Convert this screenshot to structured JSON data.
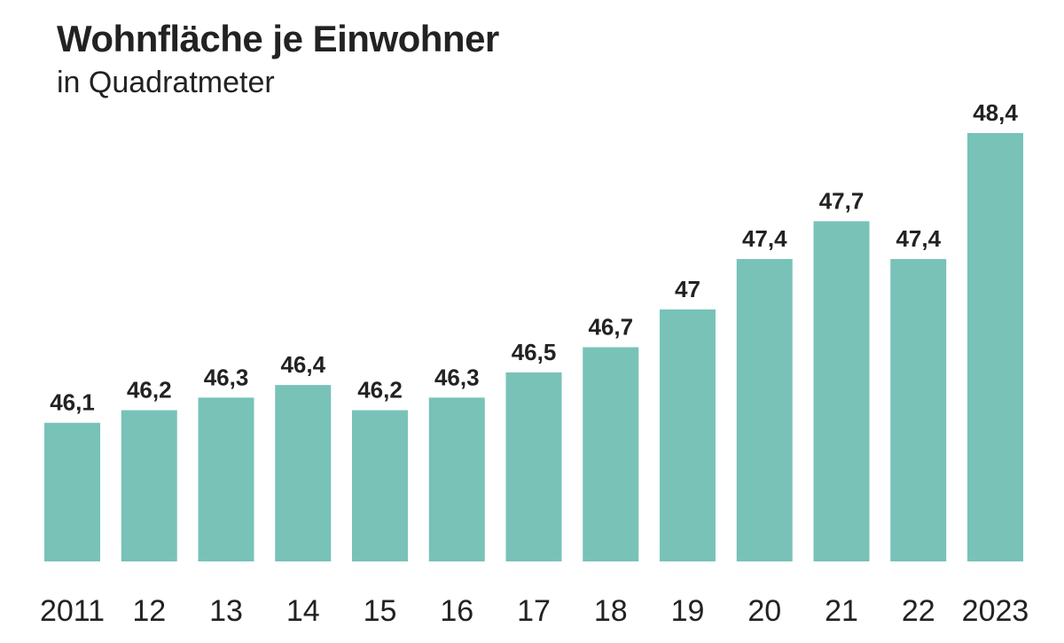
{
  "chart_data": {
    "type": "bar",
    "title": "Wohnfläche je Einwohner",
    "subtitle": "in Quadratmeter",
    "categories": [
      "2011",
      "12",
      "13",
      "14",
      "15",
      "16",
      "17",
      "18",
      "19",
      "20",
      "21",
      "22",
      "2023"
    ],
    "values": [
      46.1,
      46.2,
      46.3,
      46.4,
      46.2,
      46.3,
      46.5,
      46.7,
      47,
      47.4,
      47.7,
      47.4,
      48.4
    ],
    "value_labels": [
      "46,1",
      "46,2",
      "46,3",
      "46,4",
      "46,2",
      "46,3",
      "46,5",
      "46,7",
      "47",
      "47,4",
      "47,7",
      "47,4",
      "48,4"
    ],
    "xlabel": "",
    "ylabel": "",
    "ylim": [
      45,
      48.4
    ],
    "grid": false,
    "bar_color": "#78c2b8"
  }
}
